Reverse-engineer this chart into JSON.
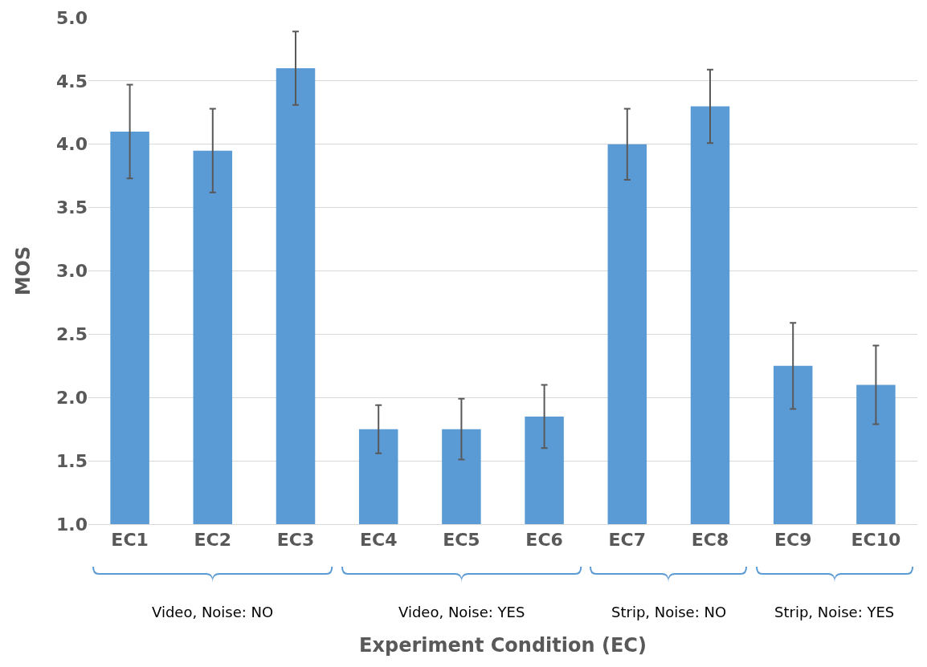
{
  "chart_data": {
    "type": "bar",
    "xlabel": "Experiment Condition (EC)",
    "ylabel": "MOS",
    "categories": [
      "EC1",
      "EC2",
      "EC3",
      "EC4",
      "EC5",
      "EC6",
      "EC7",
      "EC8",
      "EC9",
      "EC10"
    ],
    "values": [
      4.1,
      3.95,
      4.6,
      1.75,
      1.75,
      1.85,
      4.0,
      4.3,
      2.25,
      2.1
    ],
    "errors": [
      [
        3.73,
        4.47
      ],
      [
        3.62,
        4.28
      ],
      [
        4.31,
        4.89
      ],
      [
        1.56,
        1.94
      ],
      [
        1.51,
        1.99
      ],
      [
        1.6,
        2.1
      ],
      [
        3.72,
        4.28
      ],
      [
        4.01,
        4.59
      ],
      [
        1.91,
        2.59
      ],
      [
        1.79,
        2.41
      ]
    ],
    "color": "#5b9bd5",
    "ylim": [
      1.0,
      5.0
    ],
    "yticks": [
      {
        "value": 1,
        "label": "1.0"
      },
      {
        "value": 1.5,
        "label": "1.5"
      },
      {
        "value": 2,
        "label": "2.0"
      },
      {
        "value": 2.5,
        "label": "2.5"
      },
      {
        "value": 3,
        "label": "3.0"
      },
      {
        "value": 3.5,
        "label": "3.5"
      },
      {
        "value": 4,
        "label": "4.0"
      },
      {
        "value": 4.5,
        "label": "4.5"
      },
      {
        "value": 5,
        "label": "5.0"
      }
    ],
    "grid": "y",
    "annotations": [
      "Video, Noise: NO",
      "Video, Noise: YES",
      "Strip, Noise: NO",
      "Strip, Noise: YES"
    ]
  }
}
